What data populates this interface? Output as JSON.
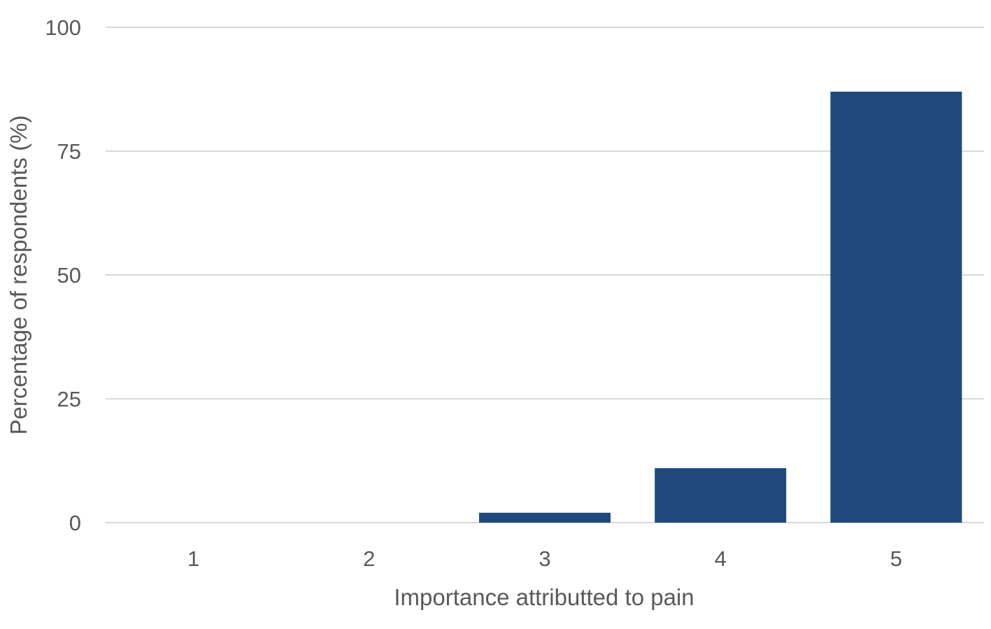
{
  "chart_data": {
    "type": "bar",
    "categories": [
      "1",
      "2",
      "3",
      "4",
      "5"
    ],
    "values": [
      0,
      0,
      2,
      11,
      87
    ],
    "xlabel": "Importance attributted to pain",
    "ylabel": "Percentage of respondents (%)",
    "ylim": [
      0,
      100
    ],
    "yticks": [
      "0",
      "25",
      "50",
      "75",
      "100"
    ],
    "grid": true,
    "legend": "none",
    "bar_color": "#1F497D"
  }
}
